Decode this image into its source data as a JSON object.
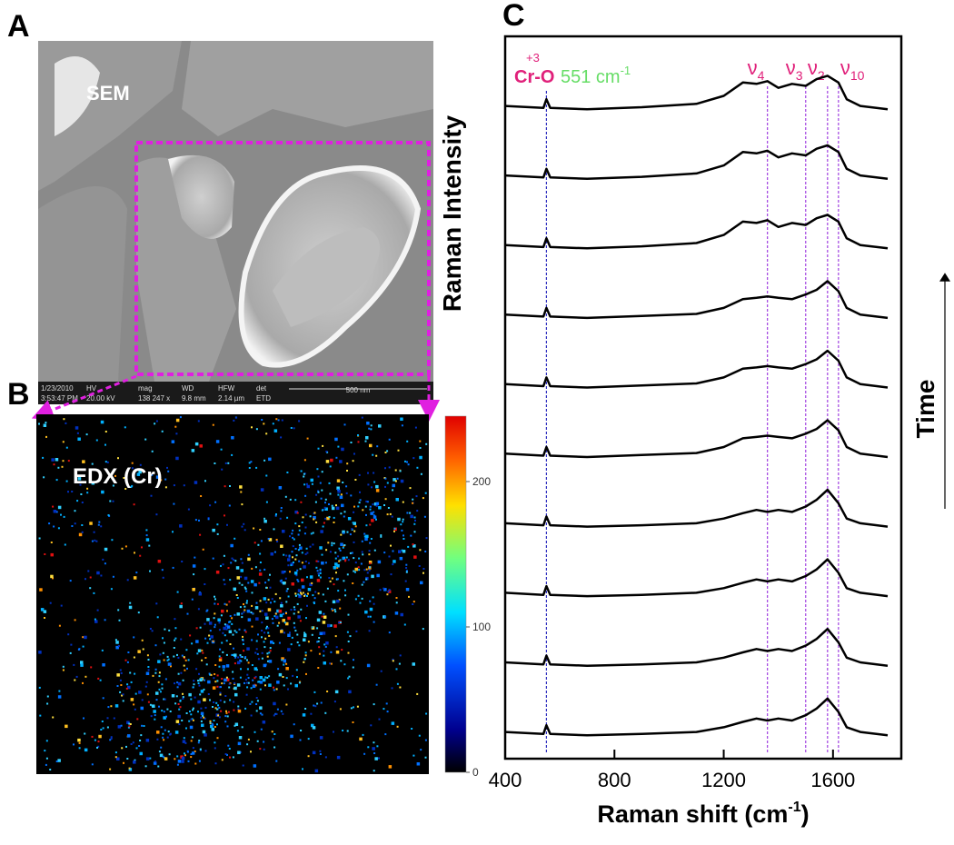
{
  "panel_a": {
    "label": "A",
    "image_label": "SEM",
    "info_bar": [
      "1/23/2010",
      "3:53:47 PM",
      "HV",
      "20.00 kV",
      "mag",
      "138 247 x",
      "WD",
      "9.8 mm",
      "HFW",
      "2.14 µm",
      "det",
      "ETD",
      "500 nm"
    ]
  },
  "panel_b": {
    "label": "B",
    "image_label": "EDX (Cr)",
    "colorbar": {
      "lim": [
        0,
        245
      ],
      "ticks": [
        0,
        100,
        200
      ]
    }
  },
  "chart_data": {
    "type": "line",
    "label": "C",
    "x_label": "Raman shift (cm",
    "x_label_superscript": "-1",
    "x_label_end": ")",
    "y_label": "Raman Intensity",
    "side_label": "Time",
    "xlim": [
      400,
      1850
    ],
    "xticks": [
      400,
      800,
      1200,
      1600
    ],
    "ylim": [
      0,
      10.8
    ],
    "x": [
      400,
      540,
      551,
      565,
      700,
      900,
      1100,
      1200,
      1270,
      1320,
      1360,
      1400,
      1450,
      1500,
      1540,
      1580,
      1620,
      1650,
      1700,
      1800
    ],
    "series": [
      {
        "color": "#000000",
        "values": [
          0.4,
          0.37,
          0.5,
          0.37,
          0.35,
          0.37,
          0.4,
          0.47,
          0.55,
          0.6,
          0.57,
          0.6,
          0.57,
          0.65,
          0.75,
          0.9,
          0.7,
          0.47,
          0.4,
          0.35
        ]
      },
      {
        "color": "#000000",
        "values": [
          1.44,
          1.41,
          1.54,
          1.41,
          1.39,
          1.41,
          1.44,
          1.51,
          1.59,
          1.64,
          1.61,
          1.64,
          1.61,
          1.69,
          1.79,
          1.94,
          1.74,
          1.51,
          1.44,
          1.39
        ]
      },
      {
        "color": "#000000",
        "values": [
          2.48,
          2.45,
          2.58,
          2.45,
          2.43,
          2.45,
          2.48,
          2.55,
          2.63,
          2.68,
          2.65,
          2.68,
          2.65,
          2.73,
          2.83,
          2.98,
          2.78,
          2.55,
          2.48,
          2.43
        ]
      },
      {
        "color": "#000000",
        "values": [
          3.52,
          3.49,
          3.62,
          3.49,
          3.47,
          3.49,
          3.52,
          3.59,
          3.67,
          3.72,
          3.69,
          3.72,
          3.69,
          3.77,
          3.87,
          4.02,
          3.82,
          3.59,
          3.52,
          3.47
        ]
      },
      {
        "color": "#000000",
        "values": [
          4.56,
          4.53,
          4.66,
          4.53,
          4.51,
          4.54,
          4.57,
          4.66,
          4.79,
          4.81,
          4.83,
          4.81,
          4.79,
          4.86,
          4.93,
          5.06,
          4.91,
          4.66,
          4.56,
          4.51
        ]
      },
      {
        "color": "#000000",
        "values": [
          5.6,
          5.57,
          5.7,
          5.57,
          5.55,
          5.58,
          5.61,
          5.7,
          5.83,
          5.85,
          5.87,
          5.85,
          5.83,
          5.9,
          5.97,
          6.1,
          5.95,
          5.7,
          5.6,
          5.55
        ]
      },
      {
        "color": "#000000",
        "values": [
          6.64,
          6.61,
          6.74,
          6.61,
          6.59,
          6.62,
          6.65,
          6.74,
          6.87,
          6.89,
          6.91,
          6.89,
          6.87,
          6.94,
          7.01,
          7.14,
          6.99,
          6.74,
          6.64,
          6.59
        ]
      },
      {
        "color": "#000000",
        "values": [
          7.68,
          7.65,
          7.78,
          7.65,
          7.63,
          7.66,
          7.71,
          7.83,
          8.03,
          8.01,
          8.05,
          7.95,
          8.01,
          7.98,
          8.08,
          8.13,
          8.03,
          7.78,
          7.68,
          7.63
        ]
      },
      {
        "color": "#000000",
        "values": [
          8.72,
          8.69,
          8.82,
          8.69,
          8.67,
          8.7,
          8.75,
          8.87,
          9.07,
          9.05,
          9.09,
          8.99,
          9.05,
          9.02,
          9.12,
          9.17,
          9.07,
          8.82,
          8.72,
          8.67
        ]
      },
      {
        "color": "#000000",
        "values": [
          9.76,
          9.73,
          9.86,
          9.73,
          9.71,
          9.74,
          9.79,
          9.91,
          10.11,
          10.09,
          10.13,
          10.03,
          10.09,
          10.06,
          10.16,
          10.21,
          10.11,
          9.86,
          9.76,
          9.71
        ]
      }
    ],
    "cr_line": {
      "value": 551,
      "label": "Cr-O",
      "superscript": "+3",
      "color": "#e0207a"
    },
    "cr_note": {
      "text": "551 cm",
      "superscript": "-1",
      "color": "#66dd66"
    },
    "bands": [
      {
        "value": 1360,
        "symbol": "ν",
        "subscript": "4"
      },
      {
        "value": 1500,
        "symbol": "ν",
        "subscript": "3"
      },
      {
        "value": 1580,
        "symbol": "ν",
        "subscript": "2"
      },
      {
        "value": 1620,
        "symbol": "ν",
        "subscript": "10"
      }
    ],
    "band_color": "#e0207a"
  }
}
